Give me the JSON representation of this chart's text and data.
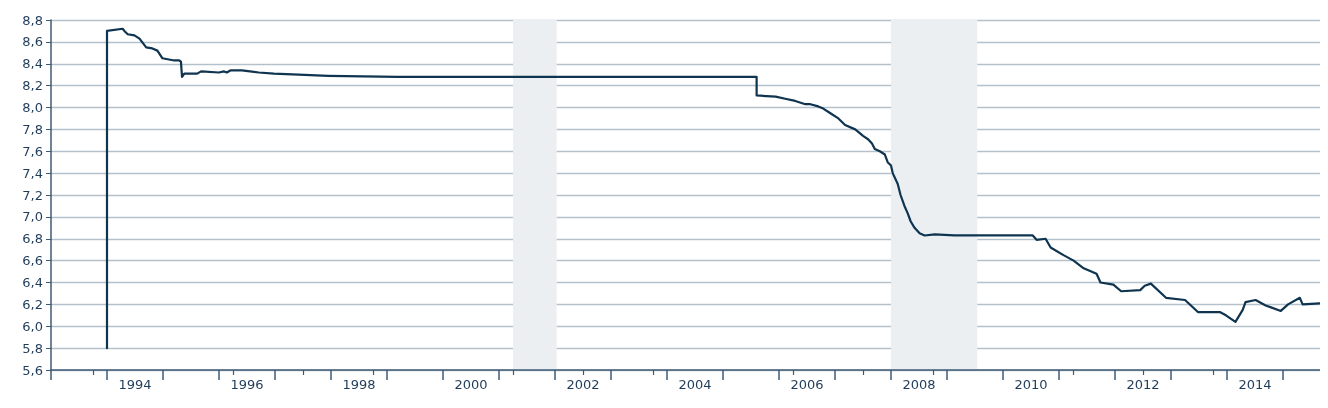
{
  "chart_data": {
    "type": "line",
    "xlim": [
      1993,
      2015.66
    ],
    "ylim": [
      5.6,
      8.8
    ],
    "xticks": [
      {
        "value": 1993,
        "label": null
      },
      {
        "value": 1994,
        "label": null
      },
      {
        "value": 1994.5,
        "label": "1994"
      },
      {
        "value": 1995,
        "label": null
      },
      {
        "value": 1996,
        "label": null
      },
      {
        "value": 1996.5,
        "label": "1996"
      },
      {
        "value": 1997,
        "label": null
      },
      {
        "value": 1998,
        "label": null
      },
      {
        "value": 1998.5,
        "label": "1998"
      },
      {
        "value": 1999,
        "label": null
      },
      {
        "value": 2000,
        "label": null
      },
      {
        "value": 2000.5,
        "label": "2000"
      },
      {
        "value": 2001,
        "label": null
      },
      {
        "value": 2002,
        "label": null
      },
      {
        "value": 2002.5,
        "label": "2002"
      },
      {
        "value": 2003,
        "label": null
      },
      {
        "value": 2004,
        "label": null
      },
      {
        "value": 2004.5,
        "label": "2004"
      },
      {
        "value": 2005,
        "label": null
      },
      {
        "value": 2006,
        "label": null
      },
      {
        "value": 2006.5,
        "label": "2006"
      },
      {
        "value": 2007,
        "label": null
      },
      {
        "value": 2008,
        "label": null
      },
      {
        "value": 2008.5,
        "label": "2008"
      },
      {
        "value": 2009,
        "label": null
      },
      {
        "value": 2010,
        "label": null
      },
      {
        "value": 2010.5,
        "label": "2010"
      },
      {
        "value": 2011,
        "label": null
      },
      {
        "value": 2012,
        "label": null
      },
      {
        "value": 2012.5,
        "label": "2012"
      },
      {
        "value": 2013,
        "label": null
      },
      {
        "value": 2014,
        "label": null
      },
      {
        "value": 2014.5,
        "label": "2014"
      },
      {
        "value": 2015,
        "label": null
      }
    ],
    "yticks": [
      {
        "value": 5.6,
        "label": "5,6"
      },
      {
        "value": 5.8,
        "label": "5,8"
      },
      {
        "value": 6.0,
        "label": "6,0"
      },
      {
        "value": 6.2,
        "label": "6,2"
      },
      {
        "value": 6.4,
        "label": "6,4"
      },
      {
        "value": 6.6,
        "label": "6,6"
      },
      {
        "value": 6.8,
        "label": "6,8"
      },
      {
        "value": 7.0,
        "label": "7,0"
      },
      {
        "value": 7.2,
        "label": "7,2"
      },
      {
        "value": 7.4,
        "label": "7,4"
      },
      {
        "value": 7.6,
        "label": "7,6"
      },
      {
        "value": 7.8,
        "label": "7,8"
      },
      {
        "value": 8.0,
        "label": "8,0"
      },
      {
        "value": 8.2,
        "label": "8,2"
      },
      {
        "value": 8.4,
        "label": "8,4"
      },
      {
        "value": 8.6,
        "label": "8,6"
      },
      {
        "value": 8.8,
        "label": "8,8"
      }
    ],
    "grid": "y",
    "marker": "none",
    "line_style": "solid",
    "bands": [
      {
        "axis": "x",
        "from": 2001.25,
        "to": 2002.03,
        "color": "#eceff2"
      },
      {
        "axis": "x",
        "from": 2008.0,
        "to": 2009.54,
        "color": "#eceff2"
      }
    ],
    "series": [
      {
        "color": "#0f3450",
        "x": [
          1994.0,
          1994.0,
          1994.28,
          1994.31,
          1994.37,
          1994.49,
          1994.58,
          1994.7,
          1994.81,
          1994.9,
          1994.99,
          1995.2,
          1995.29,
          1995.32,
          1995.34,
          1995.38,
          1995.61,
          1995.68,
          1996.0,
          1996.09,
          1996.14,
          1996.21,
          1996.41,
          1996.71,
          1996.98,
          1997.42,
          1997.95,
          1999.19,
          2005.6,
          2005.6,
          2005.94,
          2006.11,
          2006.29,
          2006.47,
          2006.56,
          2006.7,
          2006.79,
          2006.91,
          2007.06,
          2007.18,
          2007.36,
          2007.41,
          2007.5,
          2007.59,
          2007.66,
          2007.71,
          2007.8,
          2007.89,
          2007.94,
          2008.0,
          2008.03,
          2008.12,
          2008.17,
          2008.24,
          2008.3,
          2008.35,
          2008.42,
          2008.51,
          2008.6,
          2008.78,
          2009.13,
          2009.84,
          2010.53,
          2010.6,
          2010.76,
          2010.85,
          2011.08,
          2011.26,
          2011.44,
          2011.67,
          2011.74,
          2011.97,
          2012.11,
          2012.45,
          2012.53,
          2012.64,
          2012.91,
          2013.25,
          2013.48,
          2013.87,
          2013.98,
          2014.15,
          2014.28,
          2014.33,
          2014.51,
          2014.69,
          2014.96,
          2015.09,
          2015.3,
          2015.35,
          2015.65
        ],
        "values": [
          5.8,
          8.7,
          8.72,
          8.7,
          8.67,
          8.66,
          8.63,
          8.55,
          8.54,
          8.52,
          8.45,
          8.43,
          8.43,
          8.42,
          8.28,
          8.31,
          8.31,
          8.33,
          8.32,
          8.33,
          8.32,
          8.34,
          8.34,
          8.32,
          8.31,
          8.3,
          8.29,
          8.28,
          8.28,
          8.11,
          8.1,
          8.08,
          8.06,
          8.03,
          8.03,
          8.01,
          7.99,
          7.95,
          7.9,
          7.84,
          7.8,
          7.78,
          7.74,
          7.71,
          7.67,
          7.62,
          7.6,
          7.57,
          7.5,
          7.47,
          7.4,
          7.3,
          7.2,
          7.1,
          7.03,
          6.96,
          6.9,
          6.85,
          6.83,
          6.84,
          6.83,
          6.83,
          6.83,
          6.79,
          6.8,
          6.72,
          6.65,
          6.6,
          6.53,
          6.48,
          6.4,
          6.38,
          6.32,
          6.33,
          6.37,
          6.39,
          6.26,
          6.24,
          6.13,
          6.13,
          6.1,
          6.04,
          6.15,
          6.22,
          6.24,
          6.19,
          6.14,
          6.2,
          6.26,
          6.2,
          6.21
        ]
      }
    ]
  }
}
